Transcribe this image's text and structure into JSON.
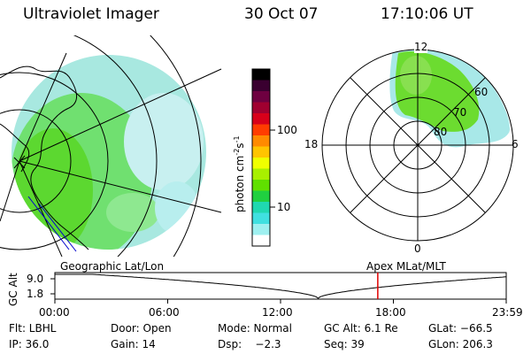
{
  "header": {
    "instrument": "Ultraviolet Imager",
    "date": "30 Oct 07",
    "time": "17:10:06 UT"
  },
  "colorbar": {
    "unit_label": "photon cm",
    "unit_sup1": "-2",
    "unit_mid": "s",
    "unit_sup2": "-1",
    "ticks": [
      "100",
      "10"
    ],
    "colors": [
      "#000000",
      "#3a0030",
      "#6e0040",
      "#a00030",
      "#d8001a",
      "#ff3c00",
      "#ff8a00",
      "#ffc400",
      "#f0ff00",
      "#a8f000",
      "#60e000",
      "#20d040",
      "#20d8b0",
      "#40e0e0",
      "#9ef0f0",
      "#ffffff"
    ]
  },
  "polar_plot": {
    "mlt_labels": {
      "top": "12",
      "left": "18",
      "right": "6",
      "bottom": "0"
    },
    "lat_labels": [
      "60",
      "70",
      "80"
    ]
  },
  "timeline": {
    "left_label": "Geographic Lat/Lon",
    "right_label": "Apex MLat/MLT",
    "axis_title": "GC Alt",
    "y_ticks": [
      "9.0",
      "1.8"
    ],
    "x_ticks": [
      "00:00",
      "06:00",
      "12:00",
      "18:00",
      "23:59"
    ],
    "current_time_hours": 17.17,
    "marker_color": "#e00000"
  },
  "status": {
    "flt": "Flt: LBHL",
    "door": "Door: Open",
    "mode": "Mode: Normal",
    "gc_alt": "GC Alt: 6.1 Re",
    "glat": "GLat: −66.5",
    "ip": "IP: 36.0",
    "gain": "Gain: 14",
    "dsp": "Dsp:    −2.3",
    "seq": "Seq: 39",
    "glon": "GLon: 206.3"
  }
}
